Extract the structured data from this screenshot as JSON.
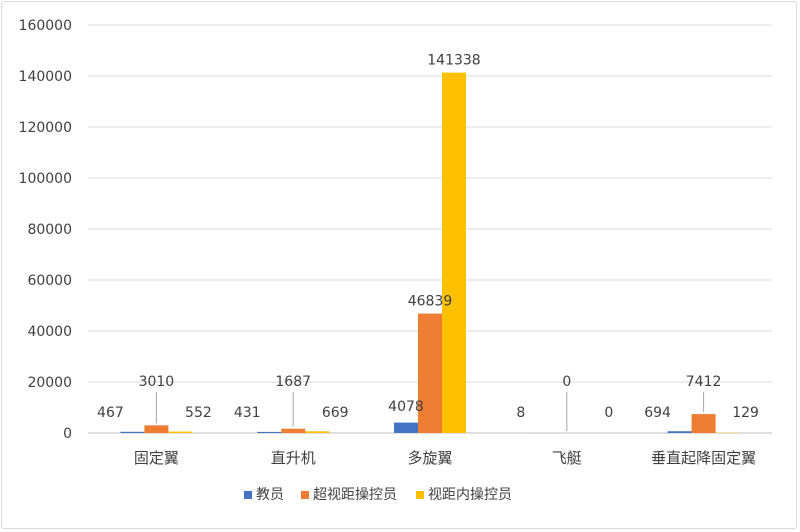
{
  "chart_data": {
    "type": "bar",
    "categories": [
      "固定翼",
      "直升机",
      "多旋翼",
      "飞艇",
      "垂直起降固定翼"
    ],
    "series": [
      {
        "name": "教员",
        "color": "#4472C4",
        "values": [
          467,
          431,
          4078,
          8,
          694
        ]
      },
      {
        "name": "超视距操控员",
        "color": "#ED7D31",
        "values": [
          3010,
          1687,
          46839,
          0,
          7412
        ]
      },
      {
        "name": "视距内操控员",
        "color": "#FFC000",
        "values": [
          552,
          669,
          141338,
          0,
          129
        ]
      }
    ],
    "yticks": [
      0,
      20000,
      40000,
      60000,
      80000,
      100000,
      120000,
      140000,
      160000
    ],
    "ylim": [
      0,
      160000
    ],
    "grid": true,
    "legend_position": "bottom",
    "title": "",
    "xlabel": "",
    "ylabel": ""
  }
}
